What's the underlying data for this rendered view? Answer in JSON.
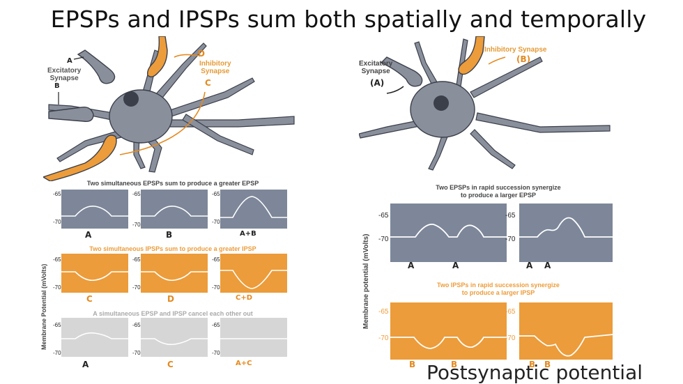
{
  "title": "EPSPs and IPSPs sum both spatially and temporally",
  "left": {
    "neuron_labels": {
      "A": "A",
      "excitatory": "Excitatory\nSynapse",
      "B": "B",
      "D": "D",
      "inhibitory": "Inhibitory\nSynapse",
      "C": "C"
    },
    "ylabel": "Membrane Potential (mVolts)",
    "ticks": {
      "top": "-65",
      "bottom": "-70"
    },
    "rows": [
      {
        "caption": "Two simultaneous EPSPs sum to produce a greater EPSP",
        "labels": [
          "A",
          "B",
          "A+B"
        ]
      },
      {
        "caption": "Two simultaneous IPSPs sum to produce a greater IPSP",
        "labels": [
          "C",
          "D",
          "C+D"
        ]
      },
      {
        "caption": "A simultaneous EPSP and IPSP cancel each other out",
        "labels": [
          "A",
          "C",
          "A+C"
        ]
      }
    ]
  },
  "right": {
    "neuron_labels": {
      "excitatory": "Excitatory\nSynapse",
      "A": "(A)",
      "inhibitory": "Inhibitory Synapse",
      "B": "(B)"
    },
    "ylabel": "Membrane potential (mVolts)",
    "ticks": {
      "top": "-65",
      "bottom": "-70"
    },
    "epsp_caption": "Two EPSPs in rapid succession synergize\nto produce a larger EPSP",
    "epsp_labels": [
      [
        "A",
        "A"
      ],
      [
        "A",
        "A"
      ]
    ],
    "ipsp_caption": "Two IPSPs in rapid succession synergize\nto produce a larger IPSP",
    "ipsp_labels": [
      [
        "B",
        "B"
      ],
      [
        "B",
        "B"
      ]
    ]
  },
  "cutoff_text": "Postsynaptic potential",
  "colors": {
    "grey": "#7d8799",
    "orange": "#ec9c3a",
    "light": "#d6d6d6",
    "neuron": "#8a8f9c"
  }
}
